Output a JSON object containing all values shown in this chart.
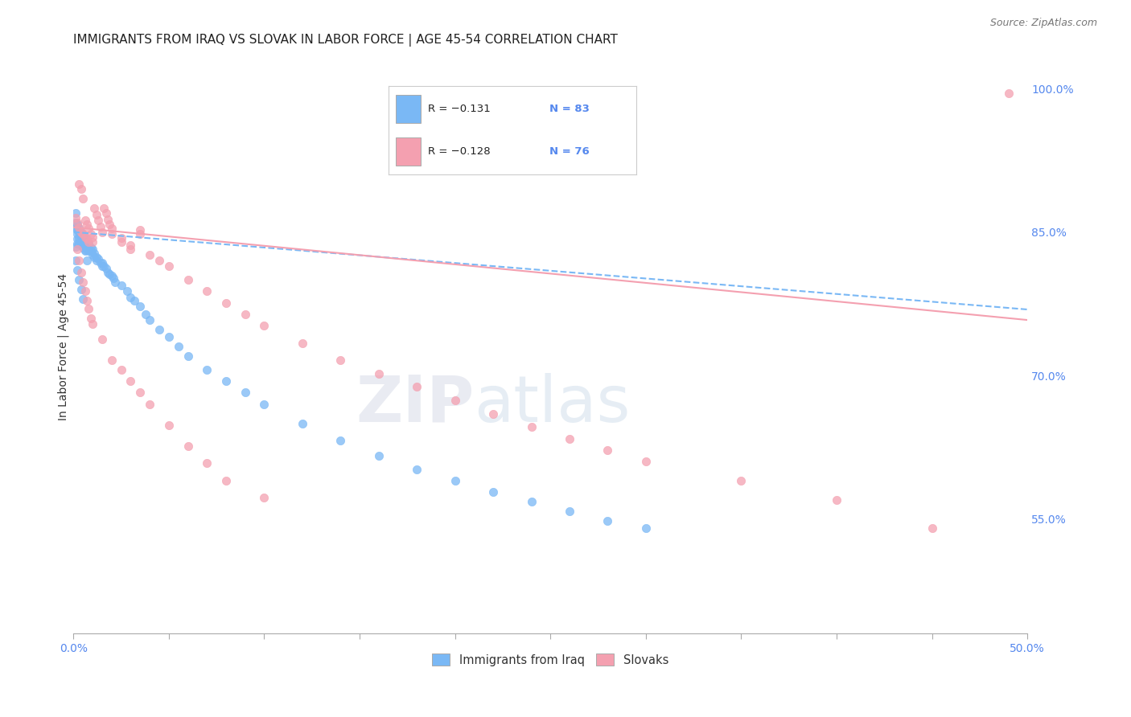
{
  "title": "IMMIGRANTS FROM IRAQ VS SLOVAK IN LABOR FORCE | AGE 45-54 CORRELATION CHART",
  "source": "Source: ZipAtlas.com",
  "ylabel": "In Labor Force | Age 45-54",
  "xlim": [
    0.0,
    0.5
  ],
  "ylim": [
    0.43,
    1.03
  ],
  "ytick_right_vals": [
    0.55,
    0.7,
    0.85,
    1.0
  ],
  "ytick_right_labels": [
    "55.0%",
    "70.0%",
    "85.0%",
    "100.0%"
  ],
  "iraq_color": "#7ab8f5",
  "slovak_color": "#f4a0b0",
  "watermark_zip": "ZIP",
  "watermark_atlas": "atlas",
  "background_color": "#ffffff",
  "grid_color": "#d8d8d8",
  "title_fontsize": 11,
  "axis_label_fontsize": 10,
  "tick_fontsize": 10,
  "iraq_scatter_x": [
    0.001,
    0.001,
    0.001,
    0.001,
    0.002,
    0.002,
    0.002,
    0.002,
    0.002,
    0.003,
    0.003,
    0.003,
    0.003,
    0.004,
    0.004,
    0.004,
    0.004,
    0.005,
    0.005,
    0.005,
    0.005,
    0.006,
    0.006,
    0.006,
    0.006,
    0.007,
    0.007,
    0.007,
    0.008,
    0.008,
    0.008,
    0.009,
    0.009,
    0.01,
    0.01,
    0.011,
    0.011,
    0.012,
    0.012,
    0.013,
    0.014,
    0.015,
    0.015,
    0.016,
    0.017,
    0.018,
    0.019,
    0.02,
    0.021,
    0.022,
    0.025,
    0.028,
    0.03,
    0.032,
    0.035,
    0.038,
    0.04,
    0.045,
    0.05,
    0.055,
    0.06,
    0.07,
    0.08,
    0.09,
    0.1,
    0.12,
    0.14,
    0.16,
    0.18,
    0.2,
    0.22,
    0.24,
    0.26,
    0.28,
    0.3,
    0.001,
    0.002,
    0.003,
    0.004,
    0.005,
    0.006,
    0.007
  ],
  "iraq_scatter_y": [
    0.87,
    0.86,
    0.855,
    0.835,
    0.858,
    0.852,
    0.848,
    0.843,
    0.838,
    0.854,
    0.85,
    0.844,
    0.838,
    0.85,
    0.845,
    0.84,
    0.836,
    0.847,
    0.842,
    0.838,
    0.834,
    0.844,
    0.84,
    0.836,
    0.831,
    0.84,
    0.836,
    0.832,
    0.838,
    0.834,
    0.83,
    0.834,
    0.83,
    0.832,
    0.826,
    0.828,
    0.824,
    0.824,
    0.82,
    0.822,
    0.818,
    0.818,
    0.814,
    0.814,
    0.812,
    0.808,
    0.806,
    0.804,
    0.802,
    0.798,
    0.794,
    0.788,
    0.782,
    0.778,
    0.772,
    0.764,
    0.758,
    0.748,
    0.74,
    0.73,
    0.72,
    0.706,
    0.694,
    0.682,
    0.67,
    0.65,
    0.632,
    0.616,
    0.602,
    0.59,
    0.578,
    0.568,
    0.558,
    0.548,
    0.54,
    0.82,
    0.81,
    0.8,
    0.79,
    0.78,
    0.83,
    0.82
  ],
  "slovak_scatter_x": [
    0.001,
    0.002,
    0.003,
    0.003,
    0.004,
    0.004,
    0.005,
    0.005,
    0.006,
    0.006,
    0.007,
    0.007,
    0.008,
    0.008,
    0.009,
    0.01,
    0.01,
    0.011,
    0.012,
    0.013,
    0.014,
    0.015,
    0.016,
    0.017,
    0.018,
    0.019,
    0.02,
    0.02,
    0.025,
    0.025,
    0.03,
    0.03,
    0.035,
    0.035,
    0.04,
    0.045,
    0.05,
    0.06,
    0.07,
    0.08,
    0.09,
    0.1,
    0.12,
    0.14,
    0.16,
    0.18,
    0.2,
    0.22,
    0.24,
    0.26,
    0.28,
    0.3,
    0.35,
    0.4,
    0.45,
    0.49,
    0.002,
    0.003,
    0.004,
    0.005,
    0.006,
    0.007,
    0.008,
    0.009,
    0.01,
    0.015,
    0.02,
    0.025,
    0.03,
    0.035,
    0.04,
    0.05,
    0.06,
    0.07,
    0.08,
    0.1
  ],
  "slovak_scatter_y": [
    0.865,
    0.86,
    0.9,
    0.855,
    0.895,
    0.85,
    0.885,
    0.848,
    0.862,
    0.845,
    0.858,
    0.843,
    0.854,
    0.84,
    0.848,
    0.845,
    0.84,
    0.875,
    0.868,
    0.862,
    0.856,
    0.85,
    0.875,
    0.87,
    0.863,
    0.858,
    0.854,
    0.848,
    0.844,
    0.84,
    0.836,
    0.832,
    0.852,
    0.848,
    0.826,
    0.82,
    0.814,
    0.8,
    0.788,
    0.776,
    0.764,
    0.752,
    0.734,
    0.716,
    0.702,
    0.688,
    0.674,
    0.66,
    0.646,
    0.634,
    0.622,
    0.61,
    0.59,
    0.57,
    0.54,
    0.995,
    0.832,
    0.82,
    0.808,
    0.798,
    0.788,
    0.778,
    0.77,
    0.76,
    0.754,
    0.738,
    0.716,
    0.706,
    0.694,
    0.682,
    0.67,
    0.648,
    0.626,
    0.608,
    0.59,
    0.572
  ],
  "iraq_trendline_x": [
    0.0,
    0.5
  ],
  "iraq_trendline_y": [
    0.85,
    0.769
  ],
  "slovak_trendline_x": [
    0.0,
    0.5
  ],
  "slovak_trendline_y": [
    0.855,
    0.758
  ]
}
